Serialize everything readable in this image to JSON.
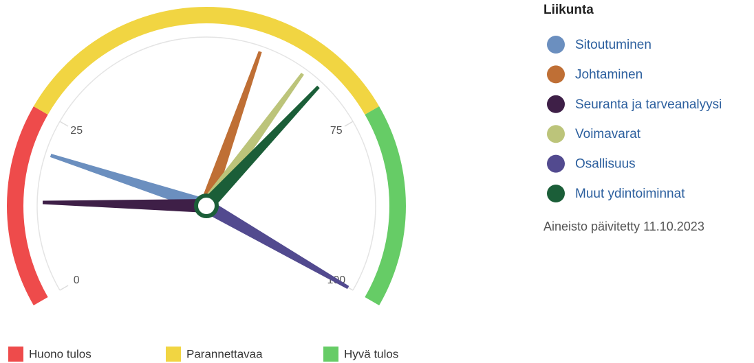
{
  "chart_data": {
    "type": "gauge",
    "title": "Liikunta",
    "note": "Aineisto päivitetty 11.10.2023",
    "ylim": [
      0,
      100
    ],
    "yticks": [
      0,
      25,
      75,
      100
    ],
    "bands": [
      {
        "name": "Huono tulos",
        "color": "#ee4b4b",
        "from": 0,
        "to": 25
      },
      {
        "name": "Parannettavaa",
        "color": "#f1d542",
        "from": 25,
        "to": 75
      },
      {
        "name": "Hyvä tulos",
        "color": "#66cc66",
        "from": 75,
        "to": 100
      }
    ],
    "series": [
      {
        "name": "Sitoutuminen",
        "color": "#6b8fbf",
        "value": 20
      },
      {
        "name": "Johtaminen",
        "color": "#bf6f35",
        "value": 58
      },
      {
        "name": "Seuranta ja tarveanalyysi",
        "color": "#3e1f47",
        "value": 13
      },
      {
        "name": "Voimavarat",
        "color": "#bcc47a",
        "value": 65
      },
      {
        "name": "Osallisuus",
        "color": "#524a8f",
        "value": 100
      },
      {
        "name": "Muut ydintoiminnat",
        "color": "#1b5e38",
        "value": 68
      }
    ]
  }
}
